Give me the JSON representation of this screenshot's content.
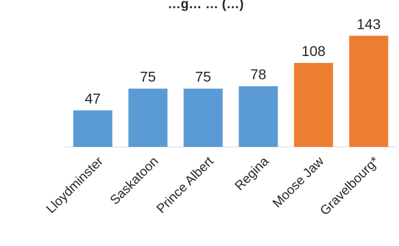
{
  "chart_data": {
    "type": "bar",
    "title": "…g… … (…)",
    "categories": [
      "Lloydminster",
      "Saskatoon",
      "Prince Albert",
      "Regina",
      "Moose Jaw",
      "Gravelbourg*"
    ],
    "values": [
      47,
      75,
      75,
      78,
      108,
      143
    ],
    "bar_colors": [
      "#5b9bd5",
      "#5b9bd5",
      "#5b9bd5",
      "#5b9bd5",
      "#ed7d31",
      "#ed7d31"
    ],
    "ylim": [
      0,
      145
    ],
    "grid": false,
    "legend": "none",
    "xlabel": "",
    "ylabel": ""
  }
}
